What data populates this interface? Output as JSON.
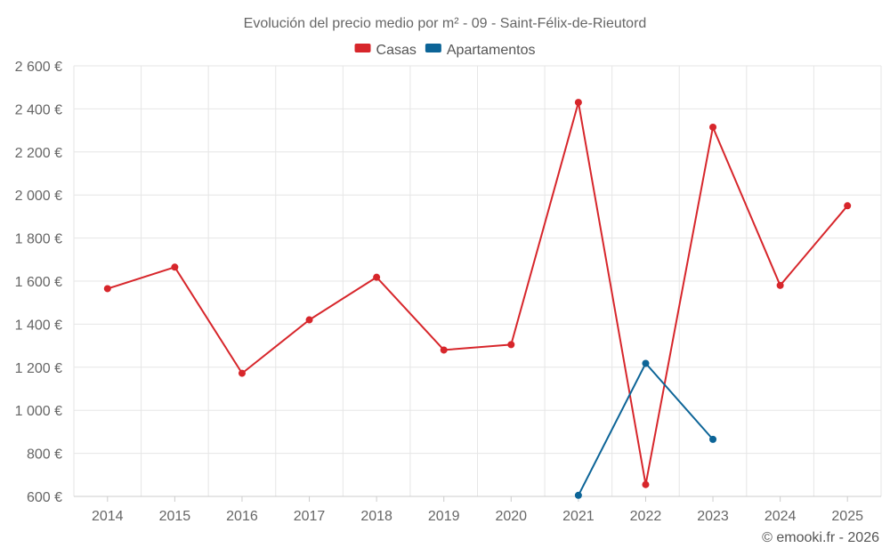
{
  "chart_data": {
    "type": "line",
    "title": "Evolución del precio medio por m² - 09 - Saint-Félix-de-Rieutord",
    "x": [
      "2014",
      "2015",
      "2016",
      "2017",
      "2018",
      "2019",
      "2020",
      "2021",
      "2022",
      "2023",
      "2024",
      "2025"
    ],
    "series": [
      {
        "name": "Casas",
        "color": "#d7262b",
        "values": [
          1565,
          1665,
          1172,
          1420,
          1618,
          1280,
          1305,
          2430,
          655,
          2315,
          1580,
          1950
        ]
      },
      {
        "name": "Apartamentos",
        "color": "#0c6497",
        "values": [
          null,
          null,
          null,
          null,
          null,
          null,
          null,
          605,
          1218,
          865,
          null,
          null
        ]
      }
    ],
    "ylim": [
      600,
      2600
    ],
    "yticks": [
      600,
      800,
      1000,
      1200,
      1400,
      1600,
      1800,
      2000,
      2200,
      2400,
      2600
    ],
    "ytick_labels": [
      "600 €",
      "800 €",
      "1 000 €",
      "1 200 €",
      "1 400 €",
      "1 600 €",
      "1 800 €",
      "2 000 €",
      "2 200 €",
      "2 400 €",
      "2 600 €"
    ],
    "grid": true,
    "legend_position": "top-center"
  },
  "credit": "© emooki.fr - 2026"
}
